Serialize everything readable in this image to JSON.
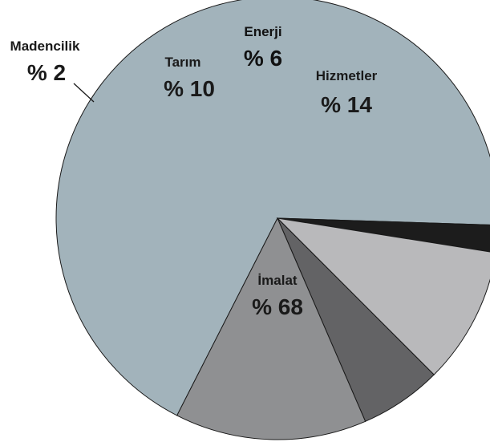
{
  "chart_data": {
    "type": "pie",
    "unit_prefix": "%",
    "slices": [
      {
        "name": "İmalat",
        "value": 68,
        "label": "% 68",
        "color": "#a2b3bb",
        "label_color": "#1a1a1a"
      },
      {
        "name": "Madencilik",
        "value": 2,
        "label": "% 2",
        "color": "#1c1c1c",
        "label_color": "#1a1a1a"
      },
      {
        "name": "Tarım",
        "value": 10,
        "label": "% 10",
        "color": "#b9b9bb",
        "label_color": "#1a1a1a"
      },
      {
        "name": "Enerji",
        "value": 6,
        "label": "% 6",
        "color": "#636365",
        "label_color": "#111111"
      },
      {
        "name": "Hizmetler",
        "value": 14,
        "label": "% 14",
        "color": "#8f9092",
        "label_color": "#1a1a1a"
      }
    ],
    "outline_color": "#1a1a1a"
  }
}
